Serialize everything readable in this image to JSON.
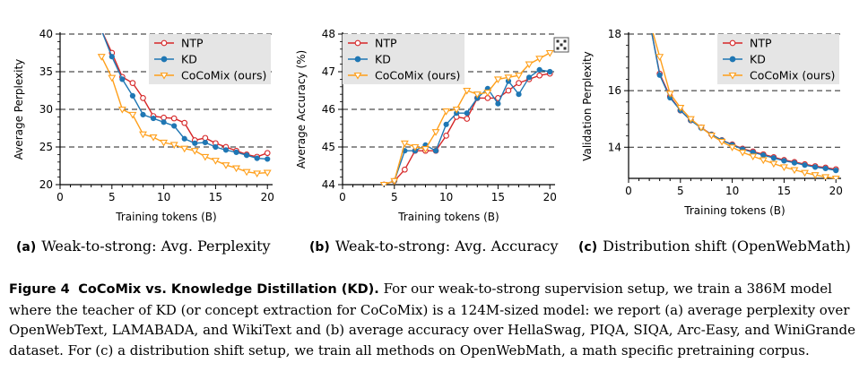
{
  "colors": {
    "ntp": "#d62728",
    "kd": "#1f77b4",
    "cocomix": "#ff9f1a",
    "legend_bg": "#e5e5e5"
  },
  "chart_data": [
    {
      "type": "line",
      "panel_label": "(a)",
      "caption": "Weak-to-strong: Avg. Perplexity",
      "xlabel": "Training tokens (B)",
      "ylabel": "Average Perplexity",
      "xlim": [
        0,
        20.5
      ],
      "ylim": [
        20,
        40
      ],
      "xticks": [
        "0",
        "5",
        "10",
        "15",
        "20"
      ],
      "yticks": [
        "20",
        "25",
        "30",
        "35",
        "40"
      ],
      "grid": "dashed horizontal at major y ticks",
      "legend_position": "top-right",
      "series": [
        {
          "name": "NTP",
          "marker": "circle",
          "x": [
            4,
            5,
            6,
            7,
            8,
            9,
            10,
            11,
            12,
            13,
            14,
            15,
            16,
            17,
            18,
            19,
            20
          ],
          "y": [
            40.5,
            37.5,
            34.3,
            33.5,
            31.5,
            29.1,
            28.9,
            28.8,
            28.2,
            25.9,
            26.2,
            25.5,
            25.0,
            24.5,
            24.0,
            23.7,
            24.2
          ]
        },
        {
          "name": "KD",
          "marker": "circle",
          "x": [
            4,
            5,
            6,
            7,
            8,
            9,
            10,
            11,
            12,
            13,
            14,
            15,
            16,
            17,
            18,
            19,
            20
          ],
          "y": [
            40.5,
            37.0,
            34.0,
            31.8,
            29.3,
            28.8,
            28.3,
            27.8,
            26.1,
            25.5,
            25.6,
            25.0,
            24.6,
            24.3,
            23.9,
            23.5,
            23.4
          ]
        },
        {
          "name": "CoCoMix (ours)",
          "marker": "triangle-down",
          "x": [
            4,
            5,
            6,
            7,
            8,
            9,
            10,
            11,
            12,
            13,
            14,
            15,
            16,
            17,
            18,
            19,
            20
          ],
          "y": [
            37.0,
            34.2,
            30.0,
            29.3,
            26.7,
            26.3,
            25.6,
            25.3,
            24.8,
            24.5,
            23.7,
            23.2,
            22.6,
            22.2,
            21.7,
            21.5,
            21.6
          ]
        }
      ]
    },
    {
      "type": "line",
      "panel_label": "(b)",
      "caption": "Weak-to-strong: Avg. Accuracy",
      "xlabel": "Training tokens (B)",
      "ylabel": "Average Accuracy (%)",
      "xlim": [
        0,
        20.5
      ],
      "ylim": [
        44,
        48
      ],
      "xticks": [
        "0",
        "5",
        "10",
        "15",
        "20"
      ],
      "yticks": [
        "44",
        "45",
        "46",
        "47",
        "48"
      ],
      "grid": "dashed horizontal at major y ticks",
      "legend_position": "top-left",
      "series": [
        {
          "name": "NTP",
          "marker": "circle",
          "x": [
            4,
            5,
            6,
            7,
            8,
            9,
            10,
            11,
            12,
            13,
            14,
            15,
            16,
            17,
            18,
            19,
            20
          ],
          "y": [
            44.0,
            44.1,
            44.4,
            44.9,
            44.9,
            44.9,
            45.3,
            45.8,
            45.75,
            46.3,
            46.3,
            46.3,
            46.5,
            46.7,
            46.8,
            46.9,
            46.95
          ]
        },
        {
          "name": "KD",
          "marker": "circle",
          "x": [
            4,
            5,
            6,
            7,
            8,
            9,
            10,
            11,
            12,
            13,
            14,
            15,
            16,
            17,
            18,
            19,
            20
          ],
          "y": [
            44.0,
            44.1,
            44.9,
            44.9,
            45.05,
            44.9,
            45.6,
            45.9,
            45.9,
            46.3,
            46.55,
            46.15,
            46.75,
            46.4,
            46.85,
            47.05,
            47.0
          ]
        },
        {
          "name": "CoCoMix (ours)",
          "marker": "triangle-down",
          "x": [
            4,
            5,
            6,
            7,
            8,
            9,
            10,
            11,
            12,
            13,
            14,
            15,
            16,
            17,
            18,
            19,
            20
          ],
          "y": [
            44.0,
            44.1,
            45.1,
            45.0,
            44.95,
            45.4,
            45.95,
            46.0,
            46.5,
            46.4,
            46.45,
            46.8,
            46.85,
            46.9,
            47.2,
            47.35,
            47.5
          ]
        }
      ]
    },
    {
      "type": "line",
      "panel_label": "(c)",
      "caption": "Distribution shift (OpenWebMath)",
      "xlabel": "Training tokens (B)",
      "ylabel": "Validation Perplexity",
      "xlim": [
        0,
        20.5
      ],
      "ylim": [
        12.9,
        18
      ],
      "xticks": [
        "0",
        "5",
        "10",
        "15",
        "20"
      ],
      "yticks": [
        "14",
        "16",
        "18"
      ],
      "grid": "dashed horizontal at major y ticks",
      "legend_position": "top-right",
      "series": [
        {
          "name": "NTP",
          "marker": "circle",
          "x": [
            2,
            3,
            4,
            5,
            6,
            7,
            8,
            9,
            10,
            11,
            12,
            13,
            14,
            15,
            16,
            17,
            18,
            19,
            20
          ],
          "y": [
            18.5,
            16.6,
            15.8,
            15.3,
            14.95,
            14.7,
            14.45,
            14.25,
            14.1,
            13.95,
            13.85,
            13.75,
            13.65,
            13.55,
            13.48,
            13.4,
            13.33,
            13.28,
            13.22
          ]
        },
        {
          "name": "KD",
          "marker": "circle",
          "x": [
            2,
            3,
            4,
            5,
            6,
            7,
            8,
            9,
            10,
            11,
            12,
            13,
            14,
            15,
            16,
            17,
            18,
            19,
            20
          ],
          "y": [
            18.5,
            16.55,
            15.75,
            15.3,
            14.95,
            14.68,
            14.45,
            14.25,
            14.08,
            13.93,
            13.82,
            13.72,
            13.62,
            13.52,
            13.45,
            13.37,
            13.3,
            13.25,
            13.18
          ]
        },
        {
          "name": "CoCoMix (ours)",
          "marker": "triangle-down",
          "x": [
            2,
            3,
            4,
            5,
            6,
            7,
            8,
            9,
            10,
            11,
            12,
            13,
            14,
            15,
            16,
            17,
            18,
            19,
            20
          ],
          "y": [
            18.5,
            17.2,
            15.9,
            15.4,
            15.0,
            14.7,
            14.42,
            14.2,
            14.0,
            13.82,
            13.68,
            13.55,
            13.42,
            13.3,
            13.2,
            13.1,
            13.02,
            12.95,
            12.9
          ]
        }
      ]
    }
  ],
  "figure_caption": {
    "label": "Figure 4",
    "title": "CoCoMix vs. Knowledge Distillation (KD).",
    "text": "For our weak-to-strong supervision setup, we train a 386M model where the teacher of KD (or concept extraction for CoCoMix) is a 124M-sized model: we report (a) average perplexity over OpenWebText, LAMABADA, and WikiText and (b) average accuracy over HellaSwag, PIQA, SIQA, Arc-Easy, and WiniGrande dataset. For (c) a distribution shift setup, we train all methods on OpenWebMath, a math specific pretraining corpus."
  }
}
